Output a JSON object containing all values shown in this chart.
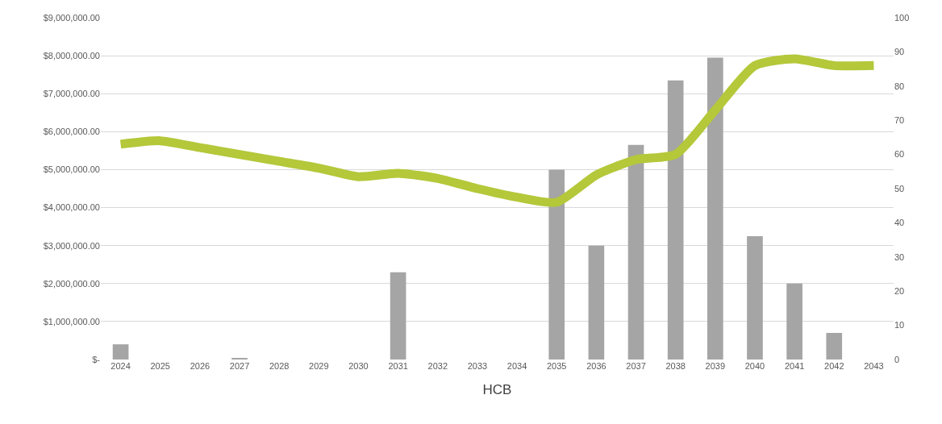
{
  "chart_data": {
    "type": "bar",
    "xlabel": "HCB",
    "categories": [
      "2024",
      "2025",
      "2026",
      "2027",
      "2028",
      "2029",
      "2030",
      "2031",
      "2032",
      "2033",
      "2034",
      "2035",
      "2036",
      "2037",
      "2038",
      "2039",
      "2040",
      "2041",
      "2042",
      "2043"
    ],
    "series": [
      {
        "color": "#a5a5a5",
        "values": [
          400000,
          0,
          0,
          30000,
          0,
          0,
          0,
          2300000,
          0,
          0,
          0,
          5000000,
          3000000,
          5650000,
          7350000,
          7950000,
          3250000,
          2000000,
          700000,
          0
        ]
      },
      {
        "type": "line",
        "axis": "y2",
        "color": "#b4c83a",
        "line_style": "solid",
        "marker": "none",
        "values": [
          63,
          64,
          62,
          60,
          58,
          56,
          53.5,
          54.5,
          53,
          50,
          47.5,
          46,
          54,
          58.5,
          60,
          73,
          86,
          88,
          86,
          86
        ]
      }
    ],
    "ylim": [
      0,
      9000000
    ],
    "yticks": [
      {
        "value": 0,
        "label": "$-"
      },
      {
        "value": 1000000,
        "label": "$1,000,000.00"
      },
      {
        "value": 2000000,
        "label": "$2,000,000.00"
      },
      {
        "value": 3000000,
        "label": "$3,000,000.00"
      },
      {
        "value": 4000000,
        "label": "$4,000,000.00"
      },
      {
        "value": 5000000,
        "label": "$5,000,000.00"
      },
      {
        "value": 6000000,
        "label": "$6,000,000.00"
      },
      {
        "value": 7000000,
        "label": "$7,000,000.00"
      },
      {
        "value": 8000000,
        "label": "$8,000,000.00"
      },
      {
        "value": 9000000,
        "label": "$9,000,000.00"
      }
    ],
    "y2lim": [
      0,
      100
    ],
    "y2ticks": [
      0,
      10,
      20,
      30,
      40,
      50,
      60,
      70,
      80,
      90,
      100
    ],
    "grid": "y"
  }
}
